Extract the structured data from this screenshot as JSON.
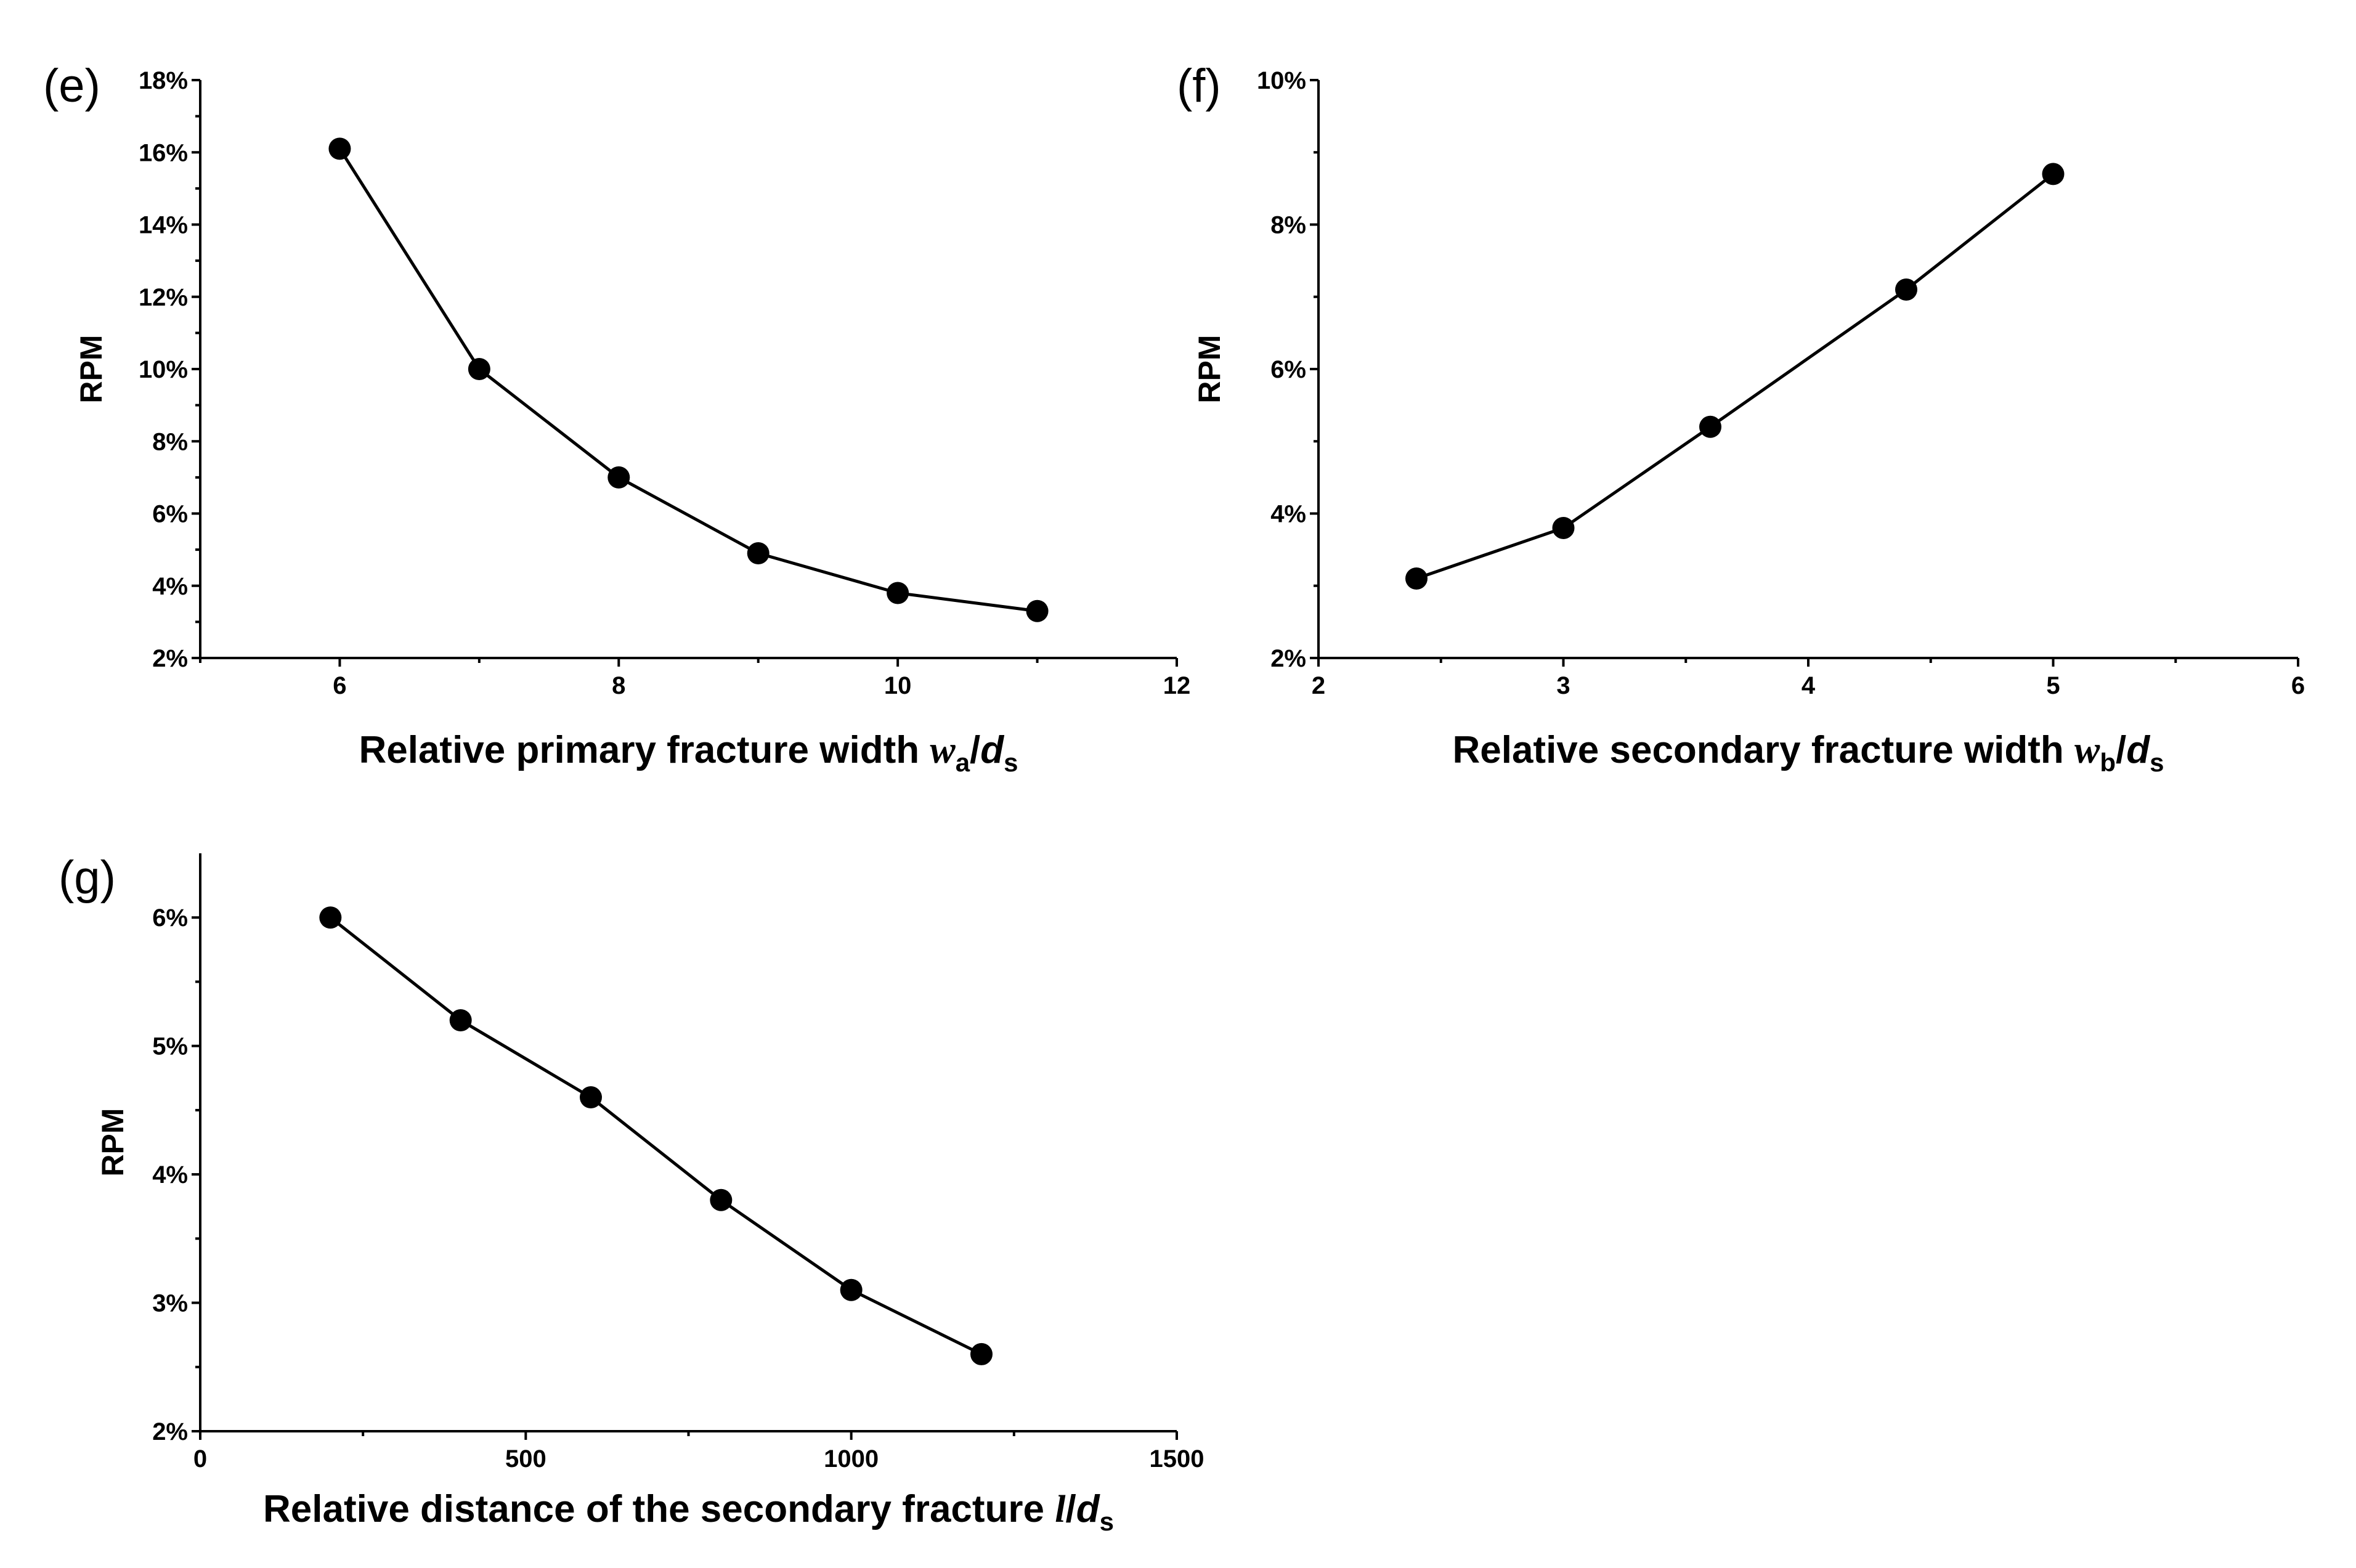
{
  "chart_data": [
    {
      "type": "line",
      "panel": "(e)",
      "x": [
        6,
        7,
        8,
        9,
        10,
        11
      ],
      "values": [
        0.161,
        0.1,
        0.07,
        0.049,
        0.038,
        0.033
      ],
      "xlim": [
        5,
        12
      ],
      "ylim": [
        0.02,
        0.18
      ],
      "xticks": [
        6,
        8,
        10,
        12
      ],
      "yticks": [
        0.02,
        0.04,
        0.06,
        0.08,
        0.1,
        0.12,
        0.14,
        0.16,
        0.18
      ],
      "xtick_labels": [
        "6",
        "8",
        "10",
        "12"
      ],
      "ytick_labels": [
        "2%",
        "4%",
        "6%",
        "8%",
        "10%",
        "12%",
        "14%",
        "16%",
        "18%"
      ],
      "ylabel": "RPM",
      "xlabel_prefix": "Relative primary fracture width ",
      "xlabel_var": "w",
      "xlabel_var_sub": "a",
      "xlabel_slash": "/",
      "xlabel_denom": "d",
      "xlabel_denom_sub": "s",
      "grid": false
    },
    {
      "type": "line",
      "panel": "(f)",
      "x": [
        2.4,
        3.0,
        3.6,
        4.4,
        5.0
      ],
      "values": [
        0.031,
        0.038,
        0.052,
        0.071,
        0.087
      ],
      "xlim": [
        2,
        6
      ],
      "ylim": [
        0.02,
        0.1
      ],
      "xticks": [
        2,
        3,
        4,
        5,
        6
      ],
      "yticks": [
        0.02,
        0.04,
        0.06,
        0.08,
        0.1
      ],
      "xtick_labels": [
        "2",
        "3",
        "4",
        "5",
        "6"
      ],
      "ytick_labels": [
        "2%",
        "4%",
        "6%",
        "8%",
        "10%"
      ],
      "ylabel": "RPM",
      "xlabel_prefix": "Relative secondary fracture width ",
      "xlabel_var": "w",
      "xlabel_var_sub": "b",
      "xlabel_slash": "/",
      "xlabel_denom": "d",
      "xlabel_denom_sub": "s",
      "grid": false
    },
    {
      "type": "line",
      "panel": "(g)",
      "x": [
        200,
        400,
        600,
        800,
        1000,
        1200
      ],
      "values": [
        0.06,
        0.052,
        0.046,
        0.038,
        0.031,
        0.026
      ],
      "xlim": [
        0,
        1500
      ],
      "ylim": [
        0.02,
        0.065
      ],
      "xticks": [
        0,
        500,
        1000,
        1500
      ],
      "yticks": [
        0.02,
        0.03,
        0.04,
        0.05,
        0.06
      ],
      "xtick_labels": [
        "0",
        "500",
        "1000",
        "1500"
      ],
      "ytick_labels": [
        "2%",
        "3%",
        "4%",
        "5%",
        "6%"
      ],
      "ylabel": "RPM",
      "xlabel_prefix": "Relative distance of the secondary fracture ",
      "xlabel_var": "l",
      "xlabel_var_sub": "",
      "xlabel_slash": "/",
      "xlabel_denom": "d",
      "xlabel_denom_sub": "s",
      "grid": false
    }
  ]
}
